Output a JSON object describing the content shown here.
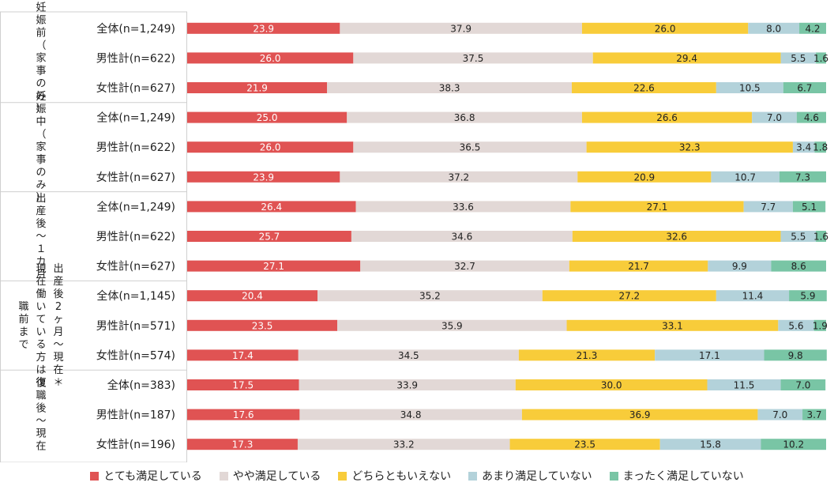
{
  "chart_data": {
    "type": "bar",
    "stacked": true,
    "orientation": "horizontal",
    "unit": "%",
    "xlim": [
      0,
      100
    ],
    "legend_position": "bottom",
    "colors": [
      "#e05353",
      "#e2d8d6",
      "#f8cc3a",
      "#b3d2da",
      "#79c5a5"
    ],
    "series_names": [
      "とても満足している",
      "やや満足している",
      "どちらともいえない",
      "あまり満足していない",
      "まったく満足していない"
    ],
    "groups": [
      {
        "label": "妊娠前（家事のみ）",
        "rows": [
          {
            "label": "全体(n=1,249)",
            "values": [
              23.9,
              37.9,
              26.0,
              8.0,
              4.2
            ]
          },
          {
            "label": "男性計(n=622)",
            "values": [
              26.0,
              37.5,
              29.4,
              5.5,
              1.6
            ]
          },
          {
            "label": "女性計(n=627)",
            "values": [
              21.9,
              38.3,
              22.6,
              10.5,
              6.7
            ]
          }
        ]
      },
      {
        "label": "妊娠中（家事のみ）",
        "rows": [
          {
            "label": "全体(n=1,249)",
            "values": [
              25.0,
              36.8,
              26.6,
              7.0,
              4.6
            ]
          },
          {
            "label": "男性計(n=622)",
            "values": [
              26.0,
              36.5,
              32.3,
              3.4,
              1.8
            ]
          },
          {
            "label": "女性計(n=627)",
            "values": [
              23.9,
              37.2,
              20.9,
              10.7,
              7.3
            ]
          }
        ]
      },
      {
        "label": "出産後〜１カ月",
        "rows": [
          {
            "label": "全体(n=1,249)",
            "values": [
              26.4,
              33.6,
              27.1,
              7.7,
              5.1
            ]
          },
          {
            "label": "男性計(n=622)",
            "values": [
              25.7,
              34.6,
              32.6,
              5.5,
              1.6
            ]
          },
          {
            "label": "女性計(n=627)",
            "values": [
              27.1,
              32.7,
              21.7,
              9.9,
              8.6
            ]
          }
        ]
      },
      {
        "label": "出産後2ヶ月〜現在＊現在働いている方は復職前まで",
        "rows": [
          {
            "label": "全体(n=1,145)",
            "values": [
              20.4,
              35.2,
              27.2,
              11.4,
              5.9
            ]
          },
          {
            "label": "男性計(n=571)",
            "values": [
              23.5,
              35.9,
              33.1,
              5.6,
              1.9
            ]
          },
          {
            "label": "女性計(n=574)",
            "values": [
              17.4,
              34.5,
              21.3,
              17.1,
              9.8
            ]
          }
        ]
      },
      {
        "label": "復職後〜現在",
        "rows": [
          {
            "label": "全体(n=383)",
            "values": [
              17.5,
              33.9,
              30.0,
              11.5,
              7.0
            ]
          },
          {
            "label": "男性計(n=187)",
            "values": [
              17.6,
              34.8,
              36.9,
              7.0,
              3.7
            ]
          },
          {
            "label": "女性計(n=196)",
            "values": [
              17.3,
              33.2,
              23.5,
              15.8,
              10.2
            ]
          }
        ]
      }
    ]
  }
}
